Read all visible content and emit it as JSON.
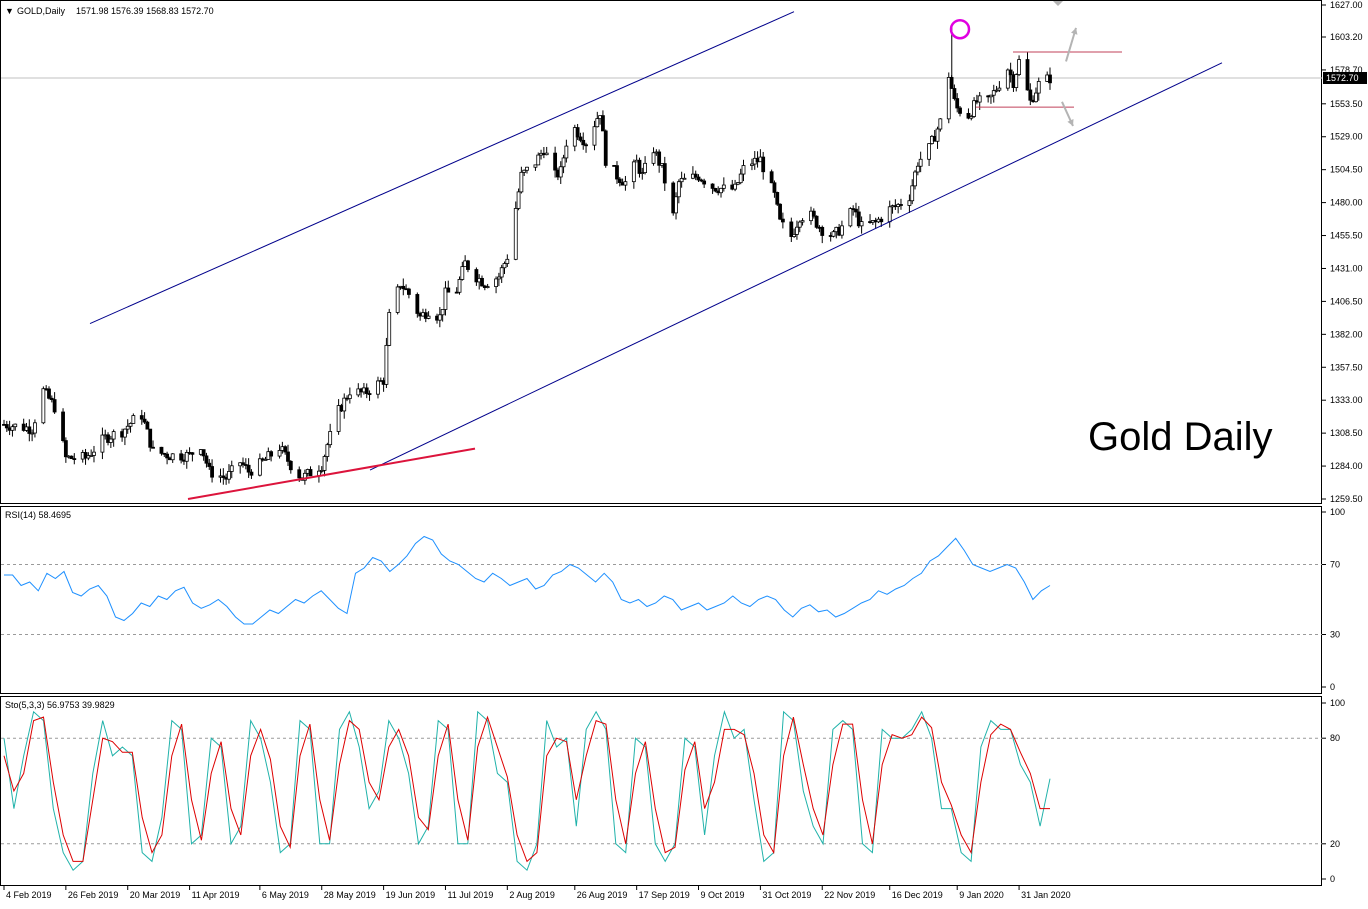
{
  "header": {
    "symbol_label": "GOLD,Daily",
    "ohlc_label": "1571.98 1576.39 1568.83 1572.70",
    "dropdown_glyph": "▼"
  },
  "annotation": {
    "text": "Gold Daily"
  },
  "colors": {
    "grid_dash": "#9a9a9a",
    "frame": "#000000",
    "channel_line": "#00008b",
    "support_line": "#dc143c",
    "range_line": "#c0405a",
    "top_circle": "#e000e0",
    "arrow": "#b4b4b4",
    "rsi_line": "#1e90ff",
    "sto_main": "#20b2aa",
    "sto_signal": "#dd0000",
    "current_price_box": "#000000"
  },
  "chart_data": [
    {
      "type": "candlestick",
      "title": "GOLD,Daily",
      "current_price": 1572.7,
      "current_price_label": "1572.70",
      "ohlc": {
        "open": 1571.98,
        "high": 1576.39,
        "low": 1568.83,
        "close": 1572.7
      },
      "ylim": [
        1259.5,
        1627.0
      ],
      "y_ticks": [
        "1627.00",
        "1603.20",
        "1578.70",
        "1553.50",
        "1529.00",
        "1504.50",
        "1480.00",
        "1455.50",
        "1431.00",
        "1406.50",
        "1382.00",
        "1357.50",
        "1333.00",
        "1308.50",
        "1284.00",
        "1259.50"
      ],
      "x_ticks": [
        "4 Feb 2019",
        "26 Feb 2019",
        "20 Mar 2019",
        "11 Apr 2019",
        "6 May 2019",
        "28 May 2019",
        "19 Jun 2019",
        "11 Jul 2019",
        "2 Aug 2019",
        "26 Aug 2019",
        "17 Sep 2019",
        "9 Oct 2019",
        "31 Oct 2019",
        "22 Nov 2019",
        "16 Dec 2019",
        "9 Jan 2020",
        "31 Jan 2020"
      ],
      "close_path": [
        [
          "4 Feb 2019",
          1315
        ],
        [
          "14 Feb 2019",
          1312
        ],
        [
          "18 Feb 2019",
          1340
        ],
        [
          "22 Feb 2019",
          1328
        ],
        [
          "26 Feb 2019",
          1290
        ],
        [
          "5 Mar 2019",
          1290
        ],
        [
          "12 Mar 2019",
          1305
        ],
        [
          "18 Mar 2019",
          1310
        ],
        [
          "22 Mar 2019",
          1318
        ],
        [
          "25 Mar 2019",
          1322
        ],
        [
          "29 Mar 2019",
          1295
        ],
        [
          "4 Apr 2019",
          1292
        ],
        [
          "11 Apr 2019",
          1292
        ],
        [
          "15 Apr 2019",
          1300
        ],
        [
          "18 Apr 2019",
          1280
        ],
        [
          "24 Apr 2019",
          1275
        ],
        [
          "29 Apr 2019",
          1287
        ],
        [
          "2 May 2019",
          1280
        ],
        [
          "6 May 2019",
          1285
        ],
        [
          "13 May 2019",
          1298
        ],
        [
          "17 May 2019",
          1285
        ],
        [
          "21 May 2019",
          1275
        ],
        [
          "28 May 2019",
          1285
        ],
        [
          "30 May 2019",
          1300
        ],
        [
          "3 Jun 2019",
          1325
        ],
        [
          "7 Jun 2019",
          1340
        ],
        [
          "12 Jun 2019",
          1338
        ],
        [
          "19 Jun 2019",
          1348
        ],
        [
          "21 Jun 2019",
          1395
        ],
        [
          "25 Jun 2019",
          1420
        ],
        [
          "28 Jun 2019",
          1412
        ],
        [
          "2 Jul 2019",
          1395
        ],
        [
          "5 Jul 2019",
          1400
        ],
        [
          "9 Jul 2019",
          1395
        ],
        [
          "11 Jul 2019",
          1412
        ],
        [
          "15 Jul 2019",
          1415
        ],
        [
          "18 Jul 2019",
          1435
        ],
        [
          "22 Jul 2019",
          1425
        ],
        [
          "25 Jul 2019",
          1420
        ],
        [
          "30 Jul 2019",
          1425
        ],
        [
          "2 Aug 2019",
          1440
        ],
        [
          "7 Aug 2019",
          1500
        ],
        [
          "12 Aug 2019",
          1510
        ],
        [
          "15 Aug 2019",
          1520
        ],
        [
          "19 Aug 2019",
          1500
        ],
        [
          "21 Aug 2019",
          1503
        ],
        [
          "23 Aug 2019",
          1525
        ],
        [
          "26 Aug 2019",
          1535
        ],
        [
          "30 Aug 2019",
          1525
        ],
        [
          "4 Sep 2019",
          1548
        ],
        [
          "6 Sep 2019",
          1512
        ],
        [
          "10 Sep 2019",
          1500
        ],
        [
          "13 Sep 2019",
          1495
        ],
        [
          "17 Sep 2019",
          1510
        ],
        [
          "19 Sep 2019",
          1500
        ],
        [
          "23 Sep 2019",
          1520
        ],
        [
          "26 Sep 2019",
          1505
        ],
        [
          "30 Sep 2019",
          1470
        ],
        [
          "2 Oct 2019",
          1495
        ],
        [
          "9 Oct 2019",
          1500
        ],
        [
          "14 Oct 2019",
          1492
        ],
        [
          "18 Oct 2019",
          1490
        ],
        [
          "22 Oct 2019",
          1490
        ],
        [
          "25 Oct 2019",
          1505
        ],
        [
          "28 Oct 2019",
          1510
        ],
        [
          "31 Oct 2019",
          1512
        ],
        [
          "5 Nov 2019",
          1485
        ],
        [
          "7 Nov 2019",
          1465
        ],
        [
          "11 Nov 2019",
          1455
        ],
        [
          "14 Nov 2019",
          1470
        ],
        [
          "18 Nov 2019",
          1470
        ],
        [
          "22 Nov 2019",
          1460
        ],
        [
          "26 Nov 2019",
          1455
        ],
        [
          "29 Nov 2019",
          1462
        ],
        [
          "3 Dec 2019",
          1475
        ],
        [
          "6 Dec 2019",
          1462
        ],
        [
          "11 Dec 2019",
          1465
        ],
        [
          "16 Dec 2019",
          1475
        ],
        [
          "19 Dec 2019",
          1478
        ],
        [
          "23 Dec 2019",
          1485
        ],
        [
          "26 Dec 2019",
          1510
        ],
        [
          "30 Dec 2019",
          1520
        ],
        [
          "3 Jan 2020",
          1540
        ],
        [
          "6 Jan 2020",
          1575
        ],
        [
          "8 Jan 2020",
          1555
        ],
        [
          "9 Jan 2020",
          1550
        ],
        [
          "13 Jan 2020",
          1545
        ],
        [
          "16 Jan 2020",
          1555
        ],
        [
          "20 Jan 2020",
          1555
        ],
        [
          "23 Jan 2020",
          1565
        ],
        [
          "27 Jan 2020",
          1580
        ],
        [
          "29 Jan 2020",
          1570
        ],
        [
          "31 Jan 2020",
          1585
        ],
        [
          "4 Feb 2020",
          1555
        ],
        [
          "7 Feb 2020",
          1568
        ],
        [
          "11 Feb 2020",
          1572.7
        ]
      ]
    },
    {
      "type": "line",
      "title": "RSI(14) 58.4695",
      "name": "RSI(14)",
      "last_value": 58.4695,
      "ylim": [
        0,
        100
      ],
      "y_ticks": [
        "100",
        "70",
        "30",
        "0"
      ],
      "levels": [
        70,
        30
      ],
      "series": [
        {
          "name": "RSI(14)",
          "values": [
            64,
            64,
            58,
            60,
            55,
            65,
            62,
            66,
            54,
            52,
            56,
            58,
            52,
            40,
            38,
            42,
            48,
            46,
            52,
            50,
            55,
            57,
            48,
            45,
            47,
            50,
            46,
            40,
            36,
            36,
            40,
            44,
            42,
            46,
            50,
            48,
            52,
            55,
            50,
            45,
            42,
            65,
            68,
            74,
            72,
            66,
            70,
            75,
            82,
            86,
            84,
            76,
            72,
            70,
            66,
            62,
            60,
            65,
            62,
            58,
            60,
            62,
            56,
            58,
            64,
            66,
            70,
            68,
            64,
            60,
            65,
            60,
            50,
            48,
            50,
            46,
            48,
            52,
            50,
            44,
            46,
            48,
            44,
            46,
            48,
            52,
            48,
            46,
            50,
            52,
            50,
            44,
            40,
            45,
            47,
            43,
            44,
            40,
            42,
            45,
            48,
            50,
            55,
            53,
            56,
            58,
            62,
            65,
            72,
            75,
            80,
            85,
            78,
            70,
            68,
            66,
            68,
            70,
            68,
            60,
            50,
            55,
            58
          ]
        }
      ]
    },
    {
      "type": "line",
      "title": "Sto(5,3,3) 56.9753 39.9829",
      "ylim": [
        0,
        100
      ],
      "y_ticks": [
        "100",
        "80",
        "20",
        "0"
      ],
      "levels": [
        80,
        20
      ],
      "main_last": 56.9753,
      "signal_last": 39.9829,
      "series": [
        {
          "name": "main",
          "values": [
            80,
            40,
            70,
            95,
            90,
            40,
            15,
            5,
            10,
            60,
            90,
            70,
            75,
            70,
            15,
            10,
            35,
            90,
            85,
            20,
            25,
            80,
            75,
            20,
            30,
            90,
            80,
            55,
            15,
            20,
            90,
            85,
            20,
            20,
            85,
            95,
            75,
            40,
            50,
            90,
            80,
            60,
            20,
            30,
            90,
            85,
            20,
            20,
            95,
            90,
            60,
            55,
            10,
            5,
            20,
            90,
            75,
            80,
            30,
            85,
            95,
            85,
            20,
            15,
            80,
            75,
            20,
            10,
            20,
            80,
            75,
            25,
            70,
            95,
            80,
            85,
            45,
            10,
            15,
            95,
            90,
            50,
            30,
            20,
            85,
            90,
            85,
            20,
            15,
            85,
            80,
            80,
            85,
            95,
            80,
            40,
            40,
            15,
            10,
            75,
            90,
            85,
            85,
            65,
            55,
            30,
            57
          ]
        },
        {
          "name": "signal",
          "values": [
            70,
            50,
            60,
            90,
            92,
            55,
            25,
            10,
            10,
            45,
            80,
            78,
            72,
            72,
            35,
            15,
            25,
            70,
            88,
            45,
            22,
            60,
            78,
            40,
            25,
            70,
            85,
            68,
            30,
            18,
            70,
            88,
            45,
            22,
            65,
            90,
            85,
            55,
            45,
            75,
            85,
            70,
            35,
            28,
            70,
            88,
            45,
            22,
            75,
            92,
            75,
            58,
            25,
            10,
            15,
            70,
            80,
            78,
            45,
            70,
            90,
            88,
            45,
            20,
            60,
            78,
            40,
            15,
            18,
            62,
            78,
            40,
            55,
            85,
            85,
            82,
            60,
            25,
            15,
            70,
            92,
            65,
            40,
            25,
            65,
            88,
            88,
            45,
            20,
            65,
            82,
            80,
            82,
            92,
            86,
            55,
            42,
            25,
            15,
            55,
            82,
            88,
            85,
            72,
            60,
            40,
            40
          ]
        }
      ]
    }
  ]
}
